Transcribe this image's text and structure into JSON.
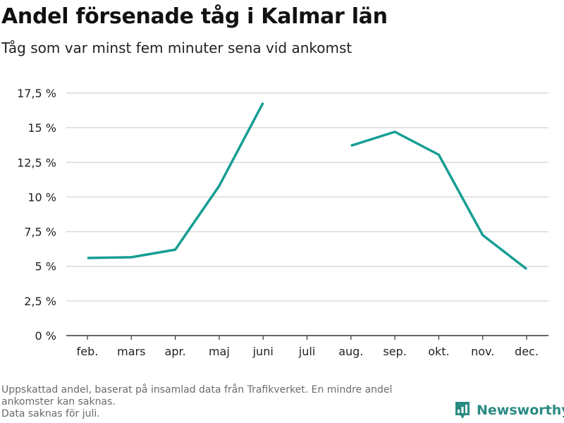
{
  "title": "Andel försenade tåg i Kalmar län",
  "subtitle": "Tåg som var minst fem minuter sena vid ankomst",
  "footnote": {
    "line1": "Uppskattad andel, baserat på insamlad data från Trafikverket. En mindre andel",
    "line2": "ankomster kan saknas.",
    "line3": "Data saknas för juli."
  },
  "brand": {
    "name": "Newsworthy",
    "icon": "newsworthy-chart-logo-icon",
    "color": "#2a8b83"
  },
  "chart_data": {
    "type": "line",
    "categories": [
      "feb.",
      "mars",
      "apr.",
      "maj",
      "juni",
      "juli",
      "aug.",
      "sep.",
      "okt.",
      "nov.",
      "dec."
    ],
    "series": [
      {
        "values": [
          5.6,
          5.65,
          6.2,
          10.8,
          16.8,
          null,
          13.7,
          14.7,
          13.05,
          7.25,
          4.8
        ]
      }
    ],
    "ylim": [
      0,
      17.5
    ],
    "yticks": [
      0,
      2.5,
      5,
      7.5,
      10,
      12.5,
      15,
      17.5
    ],
    "ytick_labels": [
      "0 %",
      "2,5 %",
      "5 %",
      "7,5 %",
      "10 %",
      "12,5 %",
      "15 %",
      "17,5 %"
    ],
    "xlabel": "",
    "ylabel": "",
    "grid": true,
    "colors": {
      "line": "#169e94",
      "grid": "#d9d9d9",
      "axis": "#333333"
    }
  }
}
